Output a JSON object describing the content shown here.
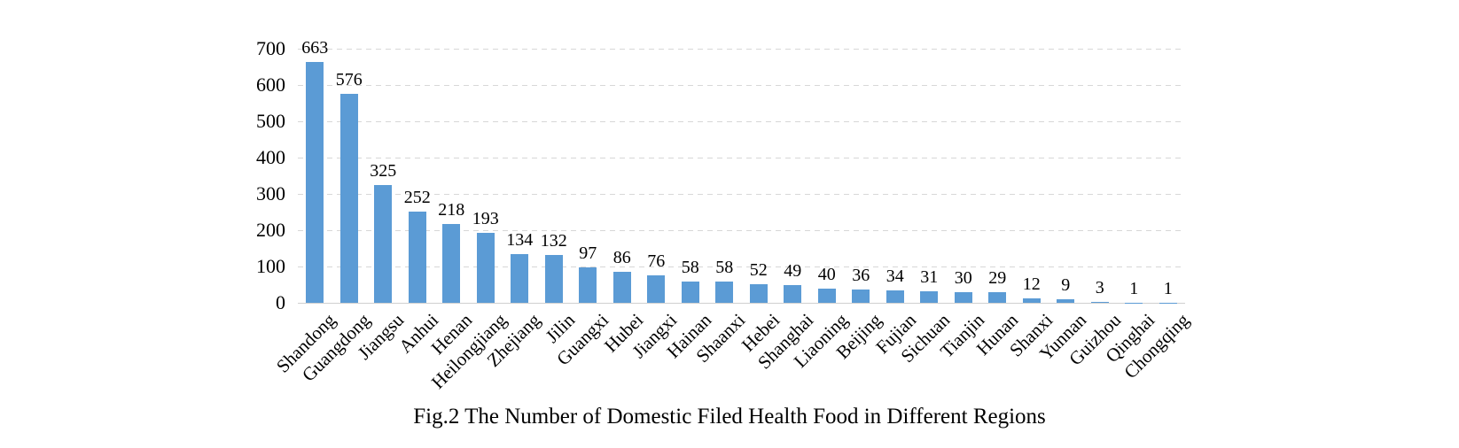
{
  "chart_data": {
    "type": "bar",
    "title": "Fig.2 The Number of Domestic Filed Health Food in Different Regions",
    "categories": [
      "Shandong",
      "Guangdong",
      "Jiangsu",
      "Anhui",
      "Henan",
      "Heilongjiang",
      "Zhejiang",
      "Jilin",
      "Guangxi",
      "Hubei",
      "Jiangxi",
      "Hainan",
      "Shaanxi",
      "Hebei",
      "Shanghai",
      "Liaoning",
      "Beijing",
      "Fujian",
      "Sichuan",
      "Tianjin",
      "Hunan",
      "Shanxi",
      "Yunnan",
      "Guizhou",
      "Qinghai",
      "Chongqing"
    ],
    "values": [
      663,
      576,
      325,
      252,
      218,
      193,
      134,
      132,
      97,
      86,
      76,
      58,
      58,
      52,
      49,
      40,
      36,
      34,
      31,
      30,
      29,
      12,
      9,
      3,
      1,
      1
    ],
    "xlabel": "",
    "ylabel": "",
    "ylim": [
      0,
      700
    ],
    "yticks": [
      0,
      100,
      200,
      300,
      400,
      500,
      600,
      700
    ],
    "grid": "horizontal-dashed",
    "legend": "none",
    "value_labels_position": "above-bars",
    "x_label_rotation_deg": 45,
    "bar_color": "#5b9bd5",
    "gridline_color": "#d7d7d7",
    "axis_line_color": "#d0d0d0",
    "text_color": "#000000"
  }
}
